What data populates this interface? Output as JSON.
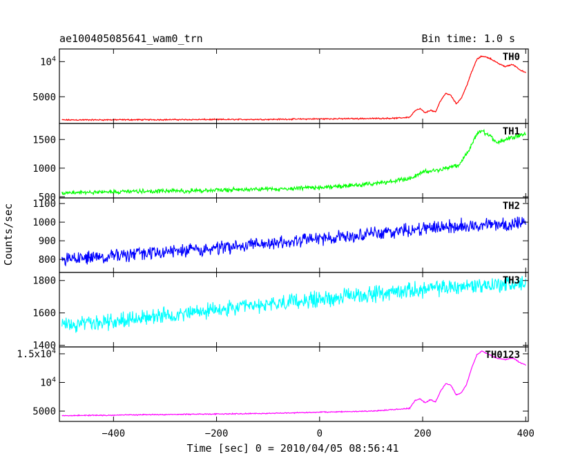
{
  "header": {
    "title": "ae100405085641_wam0_trn",
    "bin_time": "Bin time: 1.0 s"
  },
  "xlabel": "Time [sec] 0 = 2010/04/05 08:56:41",
  "ylabel": "Counts/sec",
  "chart_data": {
    "type": "line",
    "title": "ae100405085641_wam0_trn",
    "xlabel": "Time [sec] 0 = 2010/04/05 08:56:41",
    "ylabel": "Counts/sec",
    "xlim": [
      -505,
      405
    ],
    "xticks": [
      -400,
      -200,
      0,
      200,
      400
    ],
    "grid": false,
    "panels": [
      {
        "name": "TH0",
        "color": "#ff0000",
        "ylim": [
          1200,
          11800
        ],
        "yticks": [
          {
            "value": 5000,
            "label": "5000"
          },
          {
            "value": 10000,
            "label": "10^4"
          }
        ],
        "noise": 70,
        "x": [
          -500,
          -400,
          -300,
          -200,
          -100,
          0,
          100,
          150,
          175,
          185,
          195,
          205,
          215,
          225,
          235,
          245,
          255,
          265,
          275,
          285,
          295,
          305,
          315,
          330,
          345,
          360,
          375,
          390,
          400
        ],
        "y": [
          1700,
          1720,
          1740,
          1760,
          1780,
          1850,
          1900,
          1950,
          2100,
          3000,
          3300,
          2700,
          3100,
          2800,
          4500,
          5500,
          5200,
          4000,
          4800,
          6500,
          8500,
          10300,
          10800,
          10500,
          9800,
          9300,
          9600,
          8800,
          8400
        ]
      },
      {
        "name": "TH1",
        "color": "#00ff00",
        "ylim": [
          480,
          1780
        ],
        "yticks": [
          {
            "value": 500,
            "label": "500"
          },
          {
            "value": 1000,
            "label": "1000"
          },
          {
            "value": 1500,
            "label": "1500"
          }
        ],
        "noise": 28,
        "x": [
          -500,
          -400,
          -300,
          -200,
          -100,
          0,
          100,
          150,
          180,
          200,
          225,
          250,
          270,
          290,
          305,
          315,
          330,
          345,
          360,
          380,
          400
        ],
        "y": [
          560,
          585,
          600,
          615,
          635,
          660,
          720,
          780,
          840,
          930,
          960,
          1010,
          1050,
          1300,
          1600,
          1650,
          1560,
          1450,
          1500,
          1560,
          1600
        ]
      },
      {
        "name": "TH2",
        "color": "#0000ff",
        "ylim": [
          730,
          1130
        ],
        "yticks": [
          {
            "value": 800,
            "label": "800"
          },
          {
            "value": 900,
            "label": "900"
          },
          {
            "value": 1000,
            "label": "1000"
          },
          {
            "value": 1100,
            "label": "1100"
          }
        ],
        "noise": 28,
        "x": [
          -500,
          -400,
          -300,
          -200,
          -100,
          0,
          100,
          200,
          300,
          400
        ],
        "y": [
          800,
          820,
          840,
          860,
          885,
          910,
          940,
          965,
          985,
          990
        ]
      },
      {
        "name": "TH3",
        "color": "#00ffff",
        "ylim": [
          1390,
          1850
        ],
        "yticks": [
          {
            "value": 1400,
            "label": "1400"
          },
          {
            "value": 1600,
            "label": "1600"
          },
          {
            "value": 1800,
            "label": "1800"
          }
        ],
        "noise": 38,
        "x": [
          -500,
          -400,
          -300,
          -200,
          -100,
          0,
          100,
          200,
          300,
          400
        ],
        "y": [
          1520,
          1550,
          1585,
          1615,
          1650,
          1685,
          1715,
          1745,
          1770,
          1780
        ]
      },
      {
        "name": "TH0123",
        "color": "#ff00ff",
        "ylim": [
          3200,
          16200
        ],
        "yticks": [
          {
            "value": 5000,
            "label": "5000"
          },
          {
            "value": 10000,
            "label": "10^4"
          },
          {
            "value": 15000,
            "label": "1.5x10^4"
          }
        ],
        "noise": 70,
        "x": [
          -500,
          -400,
          -300,
          -200,
          -100,
          0,
          100,
          150,
          175,
          185,
          195,
          205,
          215,
          225,
          235,
          245,
          255,
          265,
          275,
          285,
          295,
          305,
          315,
          330,
          345,
          360,
          375,
          390,
          400
        ],
        "y": [
          4200,
          4300,
          4400,
          4500,
          4600,
          4800,
          5000,
          5300,
          5500,
          6800,
          7200,
          6400,
          7000,
          6600,
          8500,
          9800,
          9500,
          7800,
          8200,
          9600,
          12500,
          14800,
          15500,
          14800,
          14200,
          14000,
          14300,
          13400,
          13000
        ]
      }
    ]
  }
}
